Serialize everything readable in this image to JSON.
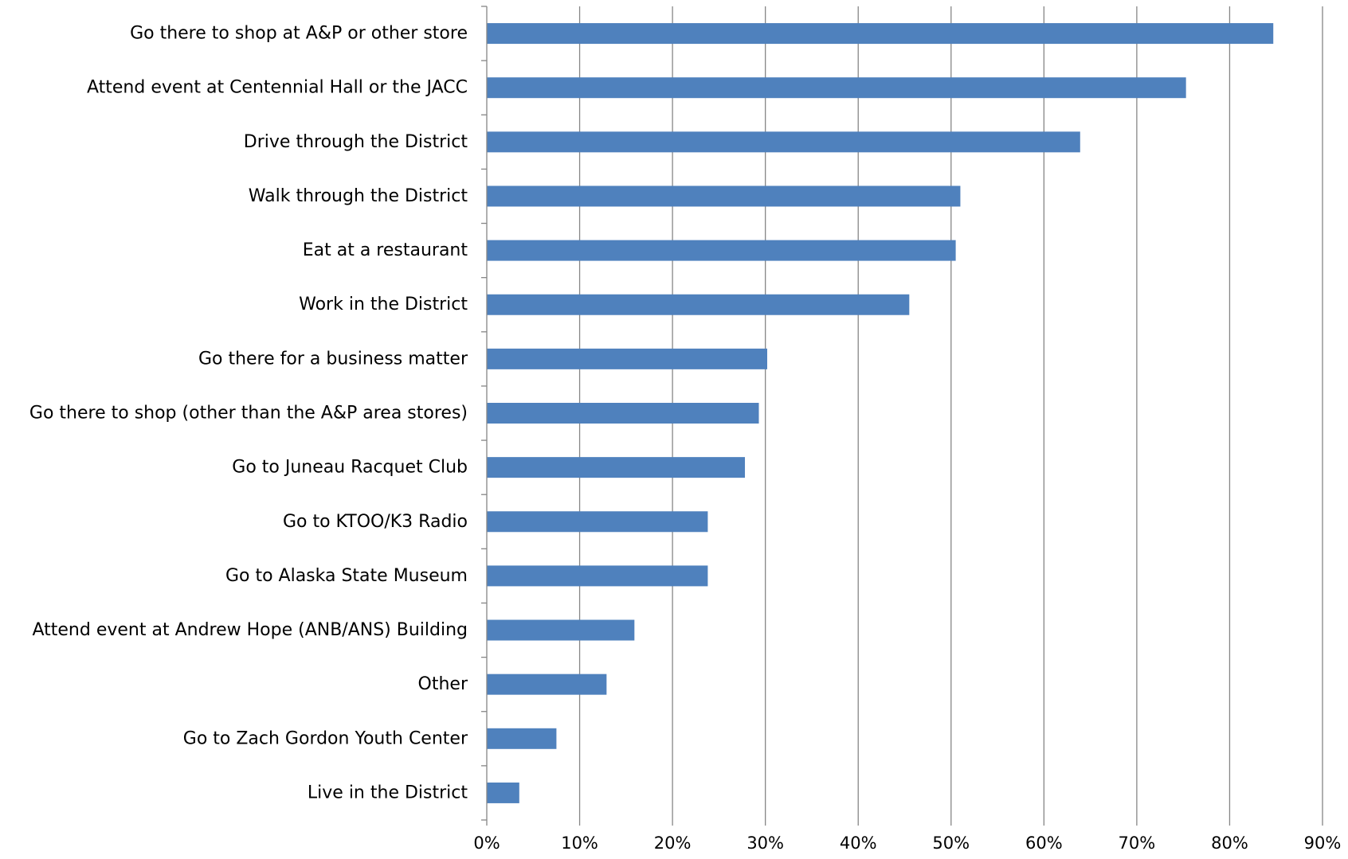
{
  "chart_data": {
    "type": "bar",
    "orientation": "horizontal",
    "title": "",
    "xlabel": "",
    "ylabel": "",
    "categories": [
      "Go there to shop at A&P or other store",
      "Attend event at Centennial Hall or the JACC",
      "Drive through the District",
      "Walk through the District",
      "Eat at a restaurant",
      "Work in the District",
      "Go there for a business matter",
      "Go there to shop (other than the A&P area stores)",
      "Go to Juneau Racquet Club",
      "Go to KTOO/K3 Radio",
      "Go to Alaska State Museum",
      "Attend event at Andrew Hope (ANB/ANS) Building",
      "Other",
      "Go to Zach Gordon Youth Center",
      "Live in the District"
    ],
    "values": [
      84.7,
      75.3,
      63.9,
      51.0,
      50.5,
      45.5,
      30.2,
      29.3,
      27.8,
      23.8,
      23.8,
      15.9,
      12.9,
      7.5,
      3.5
    ],
    "xlim": [
      0,
      90
    ],
    "ticks": [
      0,
      10,
      20,
      30,
      40,
      50,
      60,
      70,
      80,
      90
    ],
    "tick_labels": [
      "0%",
      "10%",
      "20%",
      "30%",
      "40%",
      "50%",
      "60%",
      "70%",
      "80%",
      "90%"
    ],
    "bar_color": "#4F81BD",
    "grid": true,
    "legend": "none"
  }
}
